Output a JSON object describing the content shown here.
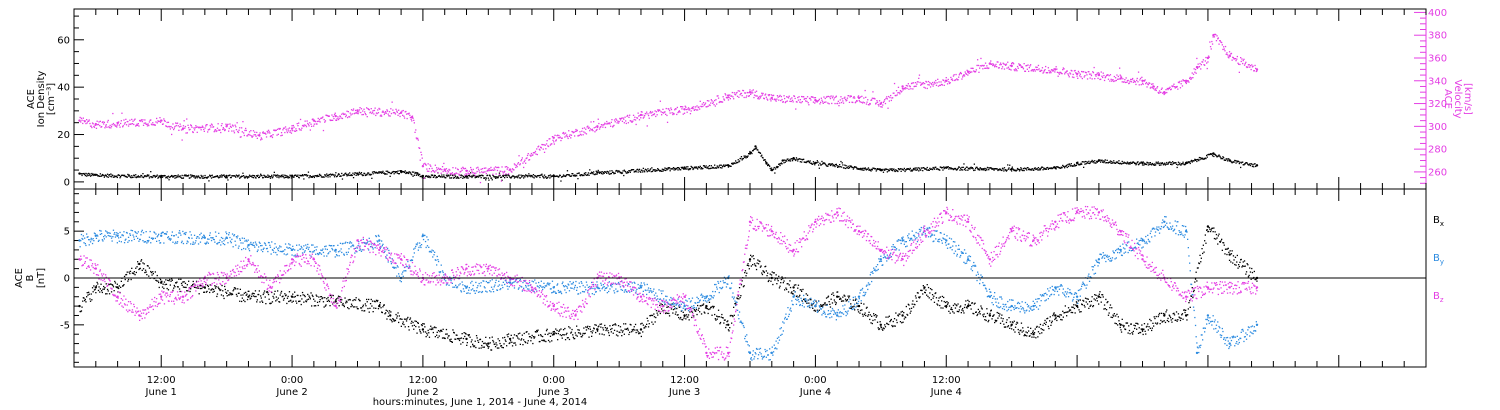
{
  "chart_data": [
    {
      "type": "scatter",
      "panel": "top",
      "ylabel_left": [
        "ACE",
        "Ion Density",
        "[cm⁻³]"
      ],
      "ylabel_right": [
        "ACE",
        "Velocity",
        "[km/s]"
      ],
      "left_ylim": [
        -3,
        73
      ],
      "left_yticks": [
        0,
        20,
        40,
        60
      ],
      "right_ylim": [
        245,
        403
      ],
      "right_yticks": [
        260,
        280,
        300,
        320,
        340,
        360,
        380,
        400
      ],
      "grid": false,
      "series": [
        {
          "axis": "left",
          "color": "#000000",
          "x": [
            4.5,
            6,
            12,
            18,
            24,
            30,
            34,
            35.5,
            36,
            40,
            48,
            52,
            60,
            64,
            66,
            66.5,
            67.5,
            68,
            69,
            70,
            72,
            78,
            84,
            90,
            94,
            96,
            98,
            102,
            106,
            108.5,
            110,
            112.5
          ],
          "y": [
            3.5,
            3,
            2.5,
            2.5,
            2.5,
            3.5,
            4.5,
            3.5,
            2.5,
            2.5,
            2.5,
            4,
            6,
            7,
            12,
            15,
            8,
            5,
            9,
            10,
            8,
            5,
            6,
            5.5,
            6,
            8,
            9,
            8,
            8,
            12,
            9,
            7
          ]
        },
        {
          "axis": "right",
          "color": "#e43ee4",
          "x": [
            4.5,
            6,
            8,
            12,
            14,
            18,
            21,
            24,
            26,
            28,
            30,
            34,
            35,
            36,
            38,
            40,
            44,
            48,
            52,
            56,
            60,
            64,
            66,
            68,
            72,
            76,
            78,
            80,
            84,
            86,
            88,
            90,
            94,
            96,
            98,
            100,
            102,
            103,
            104,
            106,
            107,
            108,
            108.5,
            110,
            112.5
          ],
          "y": [
            305,
            302,
            303,
            305,
            298,
            300,
            292,
            298,
            305,
            309,
            314,
            312,
            308,
            265,
            262,
            261,
            262,
            290,
            300,
            310,
            315,
            327,
            330,
            325,
            323,
            325,
            320,
            335,
            340,
            348,
            355,
            353,
            350,
            346,
            345,
            342,
            340,
            335,
            330,
            340,
            352,
            360,
            380,
            362,
            350
          ]
        }
      ]
    },
    {
      "type": "scatter",
      "panel": "bottom",
      "ylabel": [
        "ACE",
        "B",
        "[nT]"
      ],
      "ylim": [
        -9.5,
        9.5
      ],
      "yticks": [
        -5,
        0,
        5
      ],
      "zero_line": true,
      "grid": false,
      "series": [
        {
          "name": "B",
          "subscript": "x",
          "color": "#000000",
          "x": [
            4.5,
            6,
            8,
            10,
            12,
            16,
            20,
            24,
            28,
            32,
            33,
            36,
            40,
            42,
            44,
            48,
            52,
            56,
            58,
            60,
            62,
            64,
            66,
            68,
            70,
            72,
            74,
            76,
            78,
            80,
            82,
            84,
            86,
            88,
            90,
            92,
            94,
            96,
            98,
            100,
            102,
            104,
            106,
            108,
            110,
            112.5
          ],
          "y": [
            -3,
            -1,
            -1,
            1.5,
            -0.5,
            -1,
            -2,
            -2,
            -2.5,
            -3,
            -4,
            -5.5,
            -6.5,
            -7,
            -6.5,
            -6,
            -5.5,
            -5.5,
            -3,
            -4,
            -3,
            -5,
            2,
            0,
            -1,
            -3,
            -2,
            -3,
            -5,
            -4,
            -1,
            -3,
            -3,
            -4,
            -5,
            -6,
            -4,
            -3,
            -2,
            -5,
            -5.5,
            -4,
            -4,
            5.5,
            2.5,
            0
          ]
        },
        {
          "name": "B",
          "subscript": "y",
          "color": "#2c8be0",
          "x": [
            4.5,
            6,
            8,
            12,
            16,
            18,
            20,
            24,
            28,
            32,
            34,
            36,
            38,
            40,
            44,
            48,
            52,
            56,
            60,
            62,
            64,
            66,
            68,
            70,
            72,
            74,
            76,
            78,
            80,
            82,
            84,
            86,
            88,
            90,
            92,
            94,
            96,
            98,
            100,
            102,
            104,
            106,
            107,
            108,
            110,
            112.5
          ],
          "y": [
            4,
            4.5,
            4.5,
            4.5,
            4.3,
            4.3,
            3.5,
            3,
            3,
            4,
            0,
            4.5,
            0,
            -1,
            -0.5,
            -1,
            -1,
            -1,
            -3,
            -2,
            0,
            -8,
            -8,
            -2,
            -3,
            -4,
            -2,
            2,
            4,
            5,
            4,
            2,
            -2,
            -3,
            -3,
            -1,
            -2,
            2,
            3,
            4,
            6,
            5,
            -8,
            -4,
            -7,
            -5
          ]
        },
        {
          "name": "B",
          "subscript": "z",
          "color": "#e43ee4",
          "x": [
            4.5,
            6,
            8,
            10,
            12,
            14,
            16,
            18,
            20,
            22,
            24,
            26,
            28,
            30,
            32,
            34,
            36,
            38,
            40,
            42,
            44,
            46,
            48,
            50,
            52,
            54,
            56,
            58,
            60,
            62,
            64,
            66,
            68,
            70,
            72,
            74,
            76,
            78,
            80,
            82,
            84,
            86,
            88,
            90,
            92,
            94,
            96,
            98,
            100,
            102,
            104,
            106,
            108,
            110,
            112.5
          ],
          "y": [
            2,
            1,
            -2,
            -4,
            -2,
            -2,
            0,
            0,
            2,
            -1,
            2,
            2,
            -3,
            4,
            3,
            2,
            0,
            0,
            1,
            1,
            0,
            -1,
            -3,
            -4,
            0,
            0,
            -2,
            -3,
            -2,
            -8,
            -8,
            6,
            5,
            3,
            6,
            7,
            5,
            3,
            2,
            5,
            7,
            6,
            2,
            5,
            4,
            6,
            7,
            7,
            5,
            2,
            0,
            -2,
            -1,
            -1,
            -1
          ]
        }
      ]
    }
  ],
  "x_axis": {
    "range_hours": [
      4,
      128
    ],
    "major_tick_labels": [
      {
        "time": "12:00",
        "day": "June 1"
      },
      {
        "time": "0:00",
        "day": "June 2"
      },
      {
        "time": "12:00",
        "day": "June 2"
      },
      {
        "time": "0:00",
        "day": "June 3"
      },
      {
        "time": "12:00",
        "day": "June 3"
      },
      {
        "time": "0:00",
        "day": "June 4"
      },
      {
        "time": "12:00",
        "day": "June 4"
      }
    ],
    "title": "hours:minutes, June  1, 2014 - June  4, 2014"
  },
  "colors": {
    "black": "#000000",
    "magenta": "#e43ee4",
    "blue": "#2c8be0"
  }
}
